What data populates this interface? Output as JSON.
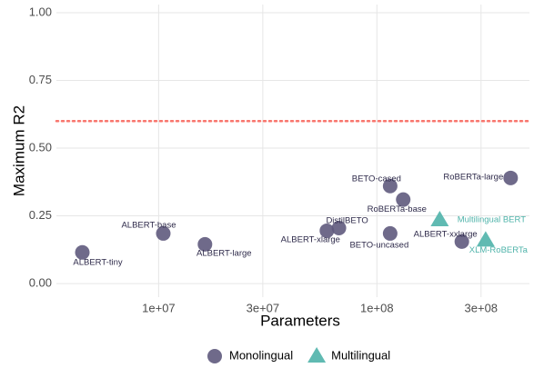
{
  "chart_data": {
    "type": "scatter",
    "x_label": "Parameters",
    "y_label": "Maximum R2",
    "xlog": true,
    "xlim": [
      3400000,
      500000000
    ],
    "xticks": [
      {
        "value": 10000000,
        "label": "1e+07"
      },
      {
        "value": 30000000,
        "label": "3e+07"
      },
      {
        "value": 100000000,
        "label": "1e+08"
      },
      {
        "value": 300000000,
        "label": "3e+08"
      }
    ],
    "ylim": [
      -0.05,
      1.03
    ],
    "yticks": [
      {
        "value": 0,
        "label": "0.00"
      },
      {
        "value": 0.25,
        "label": "0.25"
      },
      {
        "value": 0.5,
        "label": "0.50"
      },
      {
        "value": 0.75,
        "label": "0.75"
      },
      {
        "value": 1,
        "label": "1.00"
      }
    ],
    "grid": true,
    "legend": "bottom",
    "hline": {
      "value": 0.6,
      "color": "#f8766d"
    },
    "series": [
      {
        "name": "Monolingual",
        "color": "#5f5a7d",
        "shape": "circle",
        "labels": [
          "ALBERT-tiny",
          "ALBERT-base",
          "ALBERT-large",
          "ALBERT-xlarge",
          "DistilBETO",
          "BETO-cased",
          "BETO-uncased",
          "RoBERTa-base",
          "ALBERT-xxlarge",
          "RoBERTa-large"
        ],
        "x": [
          4470000,
          10500000,
          16300000,
          59000000,
          67000000,
          115000000,
          115000000,
          132000000,
          245000000,
          410000000
        ],
        "values": [
          0.115,
          0.185,
          0.145,
          0.195,
          0.205,
          0.36,
          0.185,
          0.31,
          0.155,
          0.39
        ]
      },
      {
        "name": "Multilingual",
        "color": "#4fb3aa",
        "shape": "triangle",
        "labels": [
          "Multilingual BERT",
          "XLM-RoBERTa"
        ],
        "x": [
          194000000,
          315000000
        ],
        "values": [
          0.235,
          0.16
        ]
      }
    ]
  }
}
